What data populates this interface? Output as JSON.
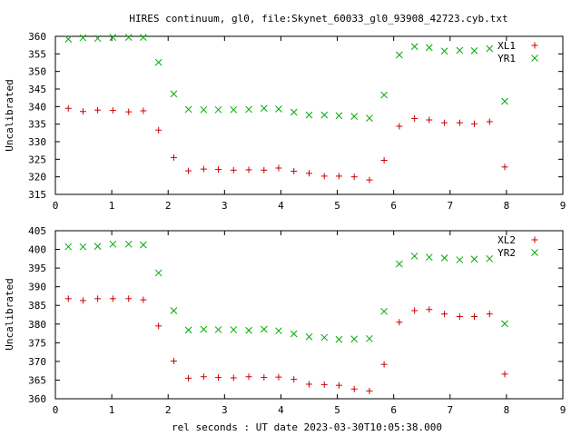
{
  "title": "HIRES continuum, gl0, file:Skynet_60033_gl0_93908_42723.cyb.txt",
  "xlabel": "rel seconds : UT date 2023-03-30T10:05:38.000",
  "colors": {
    "series_a": "#cc0000",
    "series_b": "#00aa00"
  },
  "chart_data": [
    {
      "type": "scatter",
      "xlabel": "",
      "ylabel": "Uncalibrated",
      "xlim": [
        0,
        9
      ],
      "ylim": [
        315,
        360
      ],
      "xticks": [
        0,
        1,
        2,
        3,
        4,
        5,
        6,
        7,
        8,
        9
      ],
      "yticks": [
        315,
        320,
        325,
        330,
        335,
        340,
        345,
        350,
        355,
        360
      ],
      "grid": false,
      "legend_position": "top-right",
      "series": [
        {
          "name": "XL1",
          "marker": "plus",
          "color": "#cc0000",
          "x": [
            0.23,
            0.49,
            0.75,
            1.02,
            1.3,
            1.56,
            1.83,
            2.1,
            2.36,
            2.63,
            2.89,
            3.16,
            3.43,
            3.7,
            3.96,
            4.23,
            4.5,
            4.77,
            5.03,
            5.3,
            5.57,
            5.83,
            6.1,
            6.37,
            6.63,
            6.9,
            7.17,
            7.43,
            7.7,
            7.97
          ],
          "y": [
            339.5,
            338.6,
            339.0,
            338.9,
            338.5,
            338.8,
            333.3,
            325.5,
            321.7,
            322.2,
            322.1,
            321.9,
            322.0,
            321.9,
            322.5,
            321.6,
            321.0,
            320.2,
            320.2,
            320.0,
            319.1,
            324.7,
            334.4,
            336.6,
            336.2,
            335.4,
            335.4,
            335.1,
            335.7,
            322.8
          ]
        },
        {
          "name": "YR1",
          "marker": "cross",
          "color": "#00aa00",
          "x": [
            0.23,
            0.49,
            0.75,
            1.02,
            1.3,
            1.56,
            1.83,
            2.1,
            2.36,
            2.63,
            2.89,
            3.16,
            3.43,
            3.7,
            3.96,
            4.23,
            4.5,
            4.77,
            5.03,
            5.3,
            5.57,
            5.83,
            6.1,
            6.37,
            6.63,
            6.9,
            7.17,
            7.43,
            7.7,
            7.97
          ],
          "y": [
            359.2,
            359.6,
            359.4,
            359.7,
            359.7,
            359.7,
            352.6,
            343.6,
            339.2,
            339.1,
            339.1,
            339.1,
            339.2,
            339.5,
            339.3,
            338.4,
            337.6,
            337.6,
            337.4,
            337.2,
            336.7,
            343.3,
            354.7,
            357.1,
            356.8,
            355.8,
            356.0,
            355.9,
            356.5,
            341.5
          ]
        }
      ]
    },
    {
      "type": "scatter",
      "xlabel": "rel seconds : UT date 2023-03-30T10:05:38.000",
      "ylabel": "Uncalibrated",
      "xlim": [
        0,
        9
      ],
      "ylim": [
        360,
        405
      ],
      "xticks": [
        0,
        1,
        2,
        3,
        4,
        5,
        6,
        7,
        8,
        9
      ],
      "yticks": [
        360,
        365,
        370,
        375,
        380,
        385,
        390,
        395,
        400,
        405
      ],
      "grid": false,
      "legend_position": "top-right",
      "series": [
        {
          "name": "XL2",
          "marker": "plus",
          "color": "#cc0000",
          "x": [
            0.23,
            0.49,
            0.75,
            1.02,
            1.3,
            1.56,
            1.83,
            2.1,
            2.36,
            2.63,
            2.89,
            3.16,
            3.43,
            3.7,
            3.96,
            4.23,
            4.5,
            4.77,
            5.03,
            5.3,
            5.57,
            5.83,
            6.1,
            6.37,
            6.63,
            6.9,
            7.17,
            7.43,
            7.7,
            7.97
          ],
          "y": [
            386.8,
            386.3,
            386.8,
            386.8,
            386.8,
            386.5,
            379.5,
            370.1,
            365.5,
            365.9,
            365.7,
            365.6,
            365.9,
            365.7,
            365.8,
            365.2,
            363.9,
            363.8,
            363.6,
            362.6,
            362.1,
            369.2,
            380.5,
            383.6,
            383.9,
            382.7,
            382.0,
            382.0,
            382.7,
            366.6
          ]
        },
        {
          "name": "YR2",
          "marker": "cross",
          "color": "#00aa00",
          "x": [
            0.23,
            0.49,
            0.75,
            1.02,
            1.3,
            1.56,
            1.83,
            2.1,
            2.36,
            2.63,
            2.89,
            3.16,
            3.43,
            3.7,
            3.96,
            4.23,
            4.5,
            4.77,
            5.03,
            5.3,
            5.57,
            5.83,
            6.1,
            6.37,
            6.63,
            6.9,
            7.17,
            7.43,
            7.7,
            7.97
          ],
          "y": [
            400.7,
            400.7,
            400.8,
            401.4,
            401.4,
            401.2,
            393.7,
            383.6,
            378.4,
            378.6,
            378.5,
            378.5,
            378.3,
            378.6,
            378.2,
            377.4,
            376.6,
            376.4,
            375.9,
            376.0,
            376.1,
            383.4,
            396.1,
            398.2,
            397.9,
            397.7,
            397.2,
            397.4,
            397.5,
            380.1
          ]
        }
      ]
    }
  ]
}
